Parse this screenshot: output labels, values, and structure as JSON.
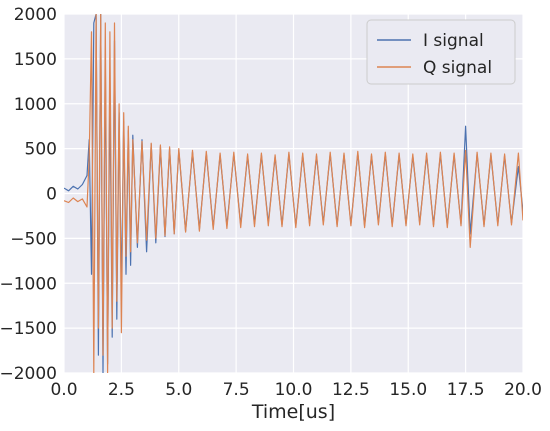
{
  "chart_data": {
    "type": "line",
    "title": "",
    "xlabel": "Time[us]",
    "ylabel": "",
    "xlim": [
      0,
      20
    ],
    "ylim": [
      -2000,
      2000
    ],
    "x_ticks": [
      "0.0",
      "2.5",
      "5.0",
      "7.5",
      "10.0",
      "12.5",
      "15.0",
      "17.5",
      "20.0"
    ],
    "y_ticks": [
      "2000",
      "1500",
      "1000",
      "500",
      "0",
      "−500",
      "−1000",
      "−1500",
      "−2000"
    ],
    "grid": true,
    "legend": "top-right",
    "background": "#eaeaf2",
    "series": [
      {
        "name": "I signal",
        "color": "#4c72b0",
        "x": [
          0.0,
          0.2,
          0.4,
          0.6,
          0.8,
          1.0,
          1.1,
          1.2,
          1.3,
          1.4,
          1.5,
          1.6,
          1.7,
          1.8,
          1.9,
          2.0,
          2.1,
          2.2,
          2.3,
          2.4,
          2.5,
          2.6,
          2.7,
          2.8,
          2.9,
          3.0,
          3.2,
          3.4,
          3.6,
          3.8,
          4.0,
          4.2,
          4.4,
          4.6,
          4.8,
          5.0,
          5.3,
          5.6,
          5.9,
          6.2,
          6.5,
          6.8,
          7.1,
          7.4,
          7.7,
          8.0,
          8.3,
          8.6,
          8.9,
          9.2,
          9.5,
          9.8,
          10.1,
          10.4,
          10.7,
          11.0,
          11.3,
          11.6,
          11.9,
          12.2,
          12.5,
          12.8,
          13.1,
          13.4,
          13.7,
          14.0,
          14.3,
          14.6,
          14.9,
          15.2,
          15.5,
          15.8,
          16.1,
          16.4,
          16.7,
          17.0,
          17.3,
          17.5,
          17.7,
          18.0,
          18.3,
          18.6,
          18.9,
          19.2,
          19.5,
          19.8,
          20.0
        ],
        "y": [
          60,
          30,
          80,
          50,
          100,
          200,
          600,
          -900,
          1900,
          2000,
          -1800,
          2000,
          -2000,
          1500,
          -1900,
          1200,
          -1600,
          1700,
          -1400,
          900,
          -1100,
          800,
          -900,
          700,
          -800,
          650,
          -600,
          600,
          -650,
          550,
          -550,
          520,
          -480,
          500,
          -450,
          480,
          -420,
          460,
          -400,
          450,
          -380,
          430,
          -360,
          440,
          -350,
          420,
          -340,
          430,
          -330,
          410,
          -350,
          440,
          -360,
          430,
          -340,
          420,
          -330,
          440,
          -350,
          430,
          -340,
          450,
          -360,
          420,
          -330,
          440,
          -350,
          430,
          -340,
          420,
          -330,
          430,
          -350,
          440,
          -360,
          430,
          -340,
          750,
          -450,
          440,
          -350,
          430,
          -340,
          420,
          -330,
          300,
          -200
        ]
      },
      {
        "name": "Q signal",
        "color": "#dd8452",
        "x": [
          0.0,
          0.2,
          0.4,
          0.6,
          0.8,
          1.0,
          1.1,
          1.2,
          1.3,
          1.4,
          1.5,
          1.6,
          1.7,
          1.8,
          1.9,
          2.0,
          2.1,
          2.2,
          2.3,
          2.4,
          2.5,
          2.6,
          2.7,
          2.8,
          2.9,
          3.0,
          3.2,
          3.4,
          3.6,
          3.8,
          4.0,
          4.2,
          4.4,
          4.6,
          4.8,
          5.0,
          5.3,
          5.6,
          5.9,
          6.2,
          6.5,
          6.8,
          7.1,
          7.4,
          7.7,
          8.0,
          8.3,
          8.6,
          8.9,
          9.2,
          9.5,
          9.8,
          10.1,
          10.4,
          10.7,
          11.0,
          11.3,
          11.6,
          11.9,
          12.2,
          12.5,
          12.8,
          13.1,
          13.4,
          13.7,
          14.0,
          14.3,
          14.6,
          14.9,
          15.2,
          15.5,
          15.8,
          16.1,
          16.4,
          16.7,
          17.0,
          17.3,
          17.5,
          17.7,
          18.0,
          18.3,
          18.6,
          18.9,
          19.2,
          19.5,
          19.8,
          20.0
        ],
        "y": [
          -80,
          -100,
          -50,
          -90,
          -60,
          -150,
          400,
          1800,
          -2000,
          2000,
          -1500,
          2000,
          -1800,
          1900,
          -2000,
          1800,
          -1500,
          1900,
          -1200,
          1000,
          -1550,
          900,
          -700,
          750,
          -650,
          600,
          -550,
          580,
          -520,
          560,
          -500,
          540,
          -470,
          520,
          -450,
          500,
          -430,
          480,
          -420,
          470,
          -400,
          450,
          -390,
          460,
          -380,
          440,
          -370,
          450,
          -360,
          430,
          -370,
          460,
          -380,
          450,
          -360,
          440,
          -350,
          460,
          -370,
          450,
          -360,
          470,
          -380,
          440,
          -350,
          460,
          -370,
          450,
          -360,
          440,
          -350,
          450,
          -370,
          460,
          -380,
          450,
          -360,
          480,
          -600,
          460,
          -370,
          450,
          -360,
          440,
          -350,
          450,
          -300
        ]
      }
    ]
  }
}
